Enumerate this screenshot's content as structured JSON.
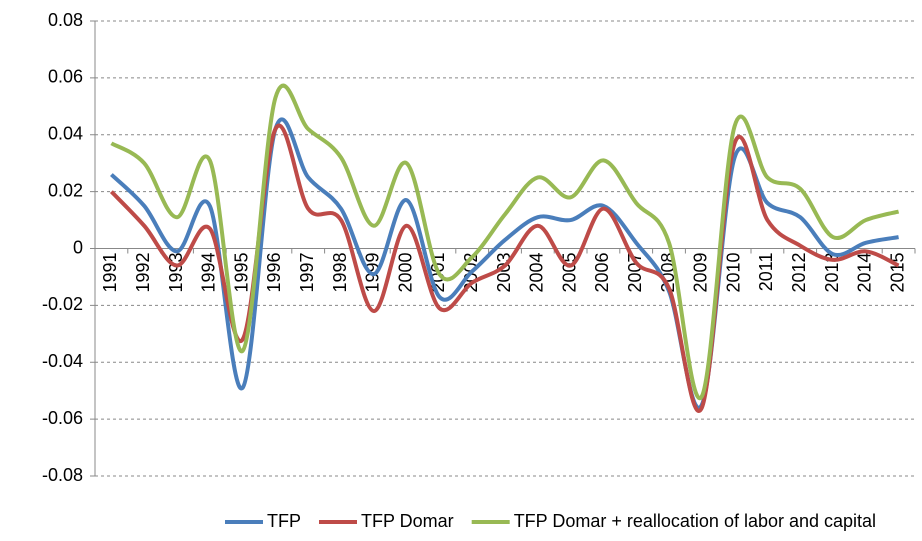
{
  "chart_data": {
    "type": "line",
    "categories": [
      "1991",
      "1992",
      "1993",
      "1994",
      "1995",
      "1996",
      "1997",
      "1998",
      "1999",
      "2000",
      "2001",
      "2002",
      "2003",
      "2004",
      "2005",
      "2006",
      "2007",
      "2008",
      "2009",
      "2010",
      "2011",
      "2012",
      "2013",
      "2014",
      "2015"
    ],
    "series": [
      {
        "name": "TFP",
        "color": "#4a7ebb",
        "values": [
          0.026,
          0.015,
          -0.001,
          0.015,
          -0.049,
          0.042,
          0.025,
          0.014,
          -0.009,
          0.017,
          -0.017,
          -0.008,
          0.003,
          0.011,
          0.01,
          0.015,
          0.002,
          -0.015,
          -0.055,
          0.032,
          0.016,
          0.011,
          -0.002,
          0.002,
          0.004
        ]
      },
      {
        "name": "TFP Domar",
        "color": "#be4b48",
        "values": [
          0.02,
          0.008,
          -0.006,
          0.007,
          -0.032,
          0.042,
          0.014,
          0.01,
          -0.022,
          0.008,
          -0.021,
          -0.012,
          -0.006,
          0.008,
          -0.006,
          0.014,
          -0.005,
          -0.014,
          -0.056,
          0.037,
          0.01,
          0.001,
          -0.004,
          -0.001,
          -0.006
        ]
      },
      {
        "name": "TFP Domar + reallocation of labor and capital",
        "color": "#98b954",
        "values": [
          0.037,
          0.03,
          0.011,
          0.031,
          -0.036,
          0.053,
          0.042,
          0.032,
          0.008,
          0.03,
          -0.009,
          -0.003,
          0.012,
          0.025,
          0.018,
          0.031,
          0.016,
          0.002,
          -0.052,
          0.043,
          0.025,
          0.021,
          0.004,
          0.01,
          0.013
        ]
      }
    ],
    "ylim": [
      -0.08,
      0.08
    ],
    "yticks": [
      -0.08,
      -0.06,
      -0.04,
      -0.02,
      0,
      0.02,
      0.04,
      0.06,
      0.08
    ],
    "grid": true,
    "legend": "bottom"
  }
}
